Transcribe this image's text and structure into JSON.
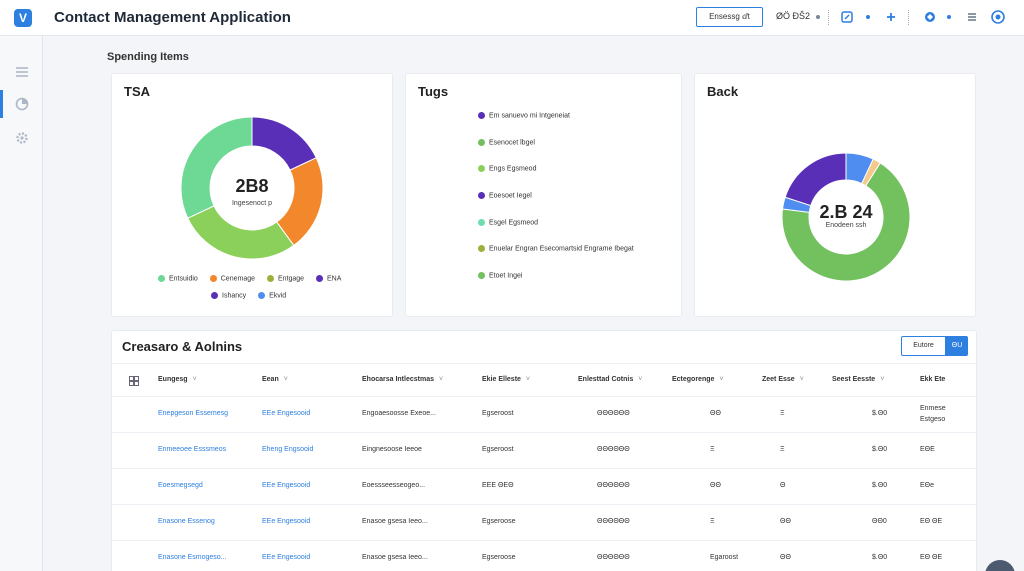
{
  "app": {
    "logo_glyph": "V",
    "title": "Contact Management Application"
  },
  "topbar": {
    "button_label": "Ensessg ⅆt",
    "text": "ØÖ ÐŜ2",
    "icons": [
      "chevron-down-icon",
      "edit-icon",
      "plus-icon",
      "globe-icon",
      "menu-icon",
      "help-icon"
    ]
  },
  "sidebar": {
    "items": [
      {
        "name": "list-icon",
        "active": false
      },
      {
        "name": "chart-icon",
        "active": true
      },
      {
        "name": "gear-icon",
        "active": false
      }
    ]
  },
  "section_heading": "Spending Items",
  "colors": {
    "green": "#6ed895",
    "purple": "#5a2fb8",
    "orange": "#f2872b",
    "lime": "#8bd05a",
    "blue": "#4f8ef0",
    "olive": "#9ab23a",
    "peach": "#f5c98c",
    "mint": "#6fdcb0",
    "kelly": "#72c05e"
  },
  "card1": {
    "title": "TSA",
    "center_value": "2B8",
    "center_sub": "Ingesenoct p",
    "legend": [
      {
        "label": "Entsuidio",
        "color": "#6ed895"
      },
      {
        "label": "Cenemage",
        "color": "#f2872b"
      },
      {
        "label": "Entgage",
        "color": "#9ab23a"
      },
      {
        "label": "ENA",
        "color": "#5a2fb8"
      },
      {
        "label": "Ishancy",
        "color": "#5a2fb8"
      },
      {
        "label": "Ekvid",
        "color": "#4f8ef0"
      }
    ]
  },
  "card2": {
    "title": "Tugs",
    "legend": [
      {
        "label": "Em sanuevo mi Intgeneiat",
        "color": "#5a2fb8"
      },
      {
        "label": "Esenocet lbgel",
        "color": "#72c05e"
      },
      {
        "label": "Engs Egsmeod",
        "color": "#8bd05a"
      },
      {
        "label": "Eoesoet Iegel",
        "color": "#5a2fb8"
      },
      {
        "label": "Esgel Egsmeod",
        "color": "#6fdcb0"
      },
      {
        "label": "Enuelar Engran Esecomartsid Engrame Ibegat",
        "color": "#9ab23a"
      },
      {
        "label": "Etoet Ingei",
        "color": "#72c05e"
      }
    ]
  },
  "card3": {
    "title": "Back",
    "center_value": "2.B 24",
    "center_sub": "Enodeen ssh"
  },
  "chart_data": [
    {
      "type": "pie",
      "title": "TSA",
      "categories": [
        "Purple",
        "Orange",
        "Lime",
        "Green"
      ],
      "values": [
        18,
        22,
        28,
        32
      ]
    },
    {
      "type": "pie",
      "title": "Back",
      "categories": [
        "Blue",
        "Peach",
        "Green",
        "Lightblue",
        "Purple"
      ],
      "values": [
        7,
        2,
        68,
        3,
        20
      ]
    }
  ],
  "table": {
    "title": "Creasaro & Aolnins",
    "btn_outline_label": "Eutore",
    "btn_solid_label": "ΘU",
    "head_icon": "grid-icon",
    "columns": [
      "Eungesg",
      "Eean",
      "Ehocarsa Intlecstmas",
      "Ekie Elleste",
      "Enlesttad Cotnis",
      "Ectegorenge",
      "Zeet Esse",
      "Seest Eesste",
      "Ekk Ete"
    ],
    "rows": [
      [
        "Enepgeson Essemesg",
        "EEe Engesooid",
        "Engoaesoosse Exeoe...",
        "Egseroost",
        "ΘΘΘΘΘΘ",
        "ΘΘ",
        "Ξ",
        "$.Θ0",
        "Enmese Estgeso"
      ],
      [
        "Enmeeoee Esssmeos",
        "Eheng Engsooid",
        "Eingnesoose Ieeoe",
        "Egseroost",
        "ΘΘΘΘΘΘ",
        "Ξ",
        "Ξ",
        "$.Θ0",
        "EΘE"
      ],
      [
        "Eoesmegsegd",
        "EEe Engesooid",
        "Eoessseesseogeo...",
        "EEE ΘEΘ",
        "ΘΘΘΘΘΘ",
        "ΘΘ",
        "Θ",
        "$.Θ0",
        "EΘe"
      ],
      [
        "Enasone Essenog",
        "EEe Engesooid",
        "Enasoe gsesa Ieeo...",
        "Egseroose",
        "ΘΘΘΘΘΘ",
        "Ξ",
        "ΘΘ",
        "ΘΘ0",
        "EΘ ΘE"
      ],
      [
        "Enasone Esmogeso...",
        "EEe Engesooid",
        "Enasoe gsesa Ieeo...",
        "Egseroose",
        "ΘΘΘΘΘΘ",
        "Egaroost",
        "ΘΘ",
        "$.Θ0",
        "EΘ ΘE"
      ]
    ]
  }
}
